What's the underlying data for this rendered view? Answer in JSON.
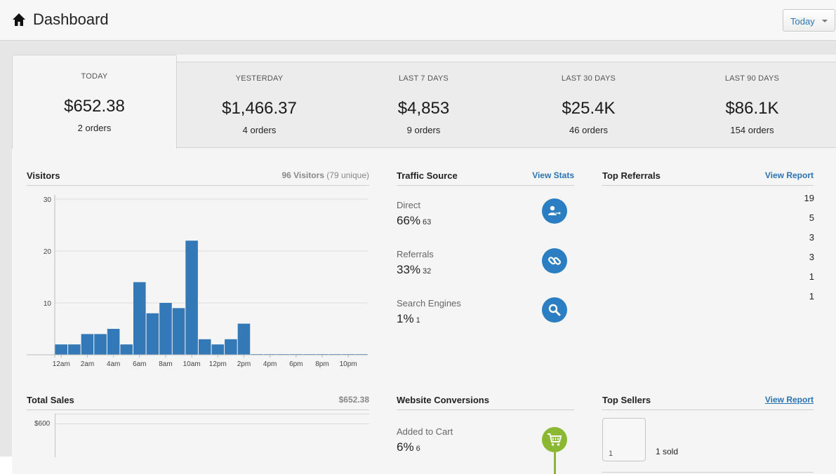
{
  "header": {
    "title": "Dashboard",
    "period_select": "Today"
  },
  "stats": [
    {
      "label": "TODAY",
      "value": "$652.38",
      "orders": "2 orders"
    },
    {
      "label": "YESTERDAY",
      "value": "$1,466.37",
      "orders": "4 orders"
    },
    {
      "label": "LAST 7 DAYS",
      "value": "$4,853",
      "orders": "9 orders"
    },
    {
      "label": "LAST 30 DAYS",
      "value": "$25.4K",
      "orders": "46 orders"
    },
    {
      "label": "LAST 90 DAYS",
      "value": "$86.1K",
      "orders": "154 orders"
    }
  ],
  "visitors": {
    "title": "Visitors",
    "total": "96 Visitors",
    "unique": "(79 unique)"
  },
  "chart_data": {
    "type": "bar",
    "title": "Visitors",
    "x": [
      "12am",
      "1am",
      "2am",
      "3am",
      "4am",
      "5am",
      "6am",
      "7am",
      "8am",
      "9am",
      "10am",
      "11am",
      "12pm",
      "1pm",
      "2pm",
      "3pm",
      "4pm",
      "5pm",
      "6pm",
      "7pm",
      "8pm",
      "9pm",
      "10pm",
      "11pm"
    ],
    "tick_labels": [
      "12am",
      "2am",
      "4am",
      "6am",
      "8am",
      "10am",
      "12pm",
      "2pm",
      "4pm",
      "6pm",
      "8pm",
      "10pm"
    ],
    "values": [
      2,
      2,
      4,
      4,
      5,
      2,
      14,
      8,
      10,
      9,
      22,
      3,
      2,
      3,
      6,
      0,
      0,
      0,
      0,
      0,
      0,
      0,
      0,
      0
    ],
    "yticks": [
      10,
      20,
      30
    ],
    "ylim": [
      0,
      30
    ],
    "grid": true,
    "color": "#3479b7"
  },
  "traffic": {
    "title": "Traffic Source",
    "link": "View Stats",
    "items": [
      {
        "label": "Direct",
        "percent": "66%",
        "count": "63",
        "icon": "user-arrow-icon"
      },
      {
        "label": "Referrals",
        "percent": "33%",
        "count": "32",
        "icon": "link-icon"
      },
      {
        "label": "Search Engines",
        "percent": "1%",
        "count": "1",
        "icon": "search-icon"
      }
    ],
    "icon_color": "#2a7ec1"
  },
  "referrals": {
    "title": "Top Referrals",
    "link": "View Report",
    "counts": [
      "19",
      "5",
      "3",
      "3",
      "1",
      "1"
    ]
  },
  "total_sales": {
    "title": "Total Sales",
    "amount": "$652.38",
    "tick": "$600"
  },
  "conversions": {
    "title": "Website Conversions",
    "items": [
      {
        "label": "Added to Cart",
        "percent": "6%",
        "count": "6",
        "icon": "cart-icon"
      }
    ],
    "icon_color": "#8ab833"
  },
  "sellers": {
    "title": "Top Sellers",
    "link": "View Report",
    "items": [
      {
        "rank": "1",
        "sold": "1 sold"
      }
    ]
  },
  "colors": {
    "accent": "#2a73b5",
    "bar": "#3479b7",
    "green": "#8ab833"
  }
}
